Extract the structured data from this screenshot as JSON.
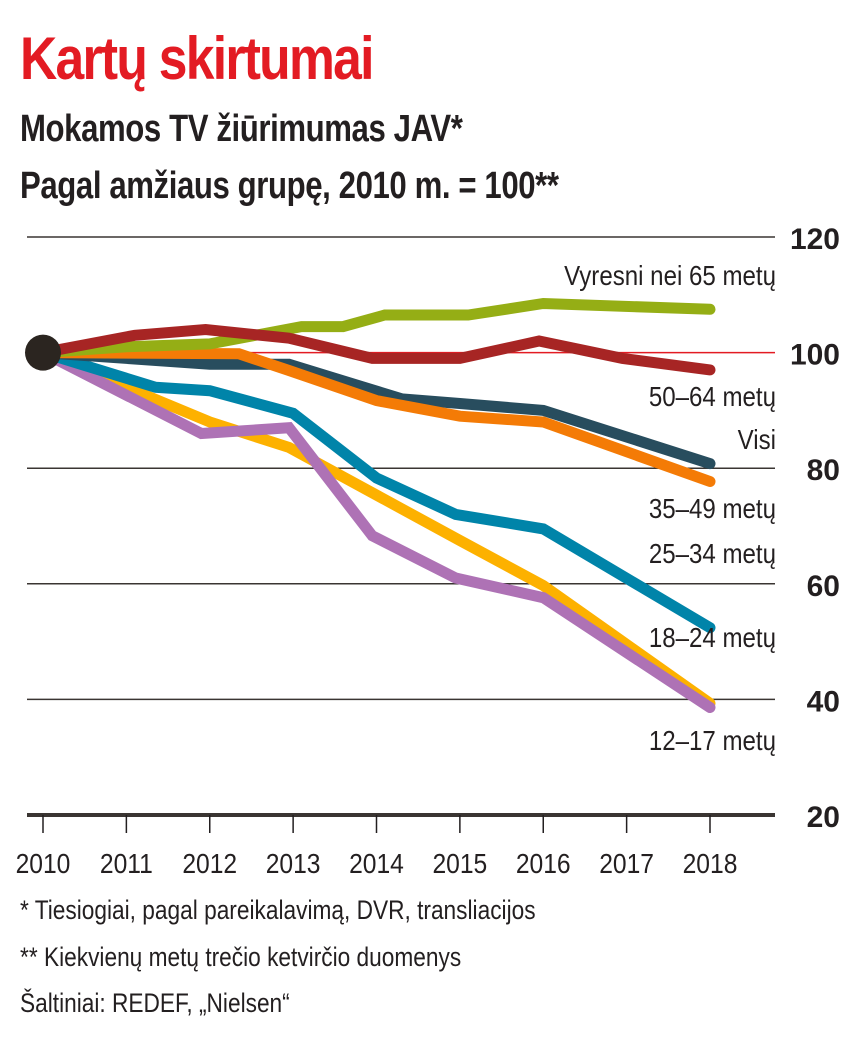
{
  "header": {
    "title": "Kartų skirtumai",
    "subtitle_line1": "Mokamos TV žiūrimumas JAV*",
    "subtitle_line2": "Pagal amžiaus grupę, 2010 m. = 100**"
  },
  "footer": {
    "note1": "* Tiesiogiai, pagal pareikalavimą, DVR, transliacijos",
    "note2": "** Kiekvienų metų trečio ketvirčio duomenys",
    "source": "Šaltiniai: REDEF, „Nielsen“"
  },
  "chart_data": {
    "type": "line",
    "title": "Kartų skirtumai",
    "subtitle": "Mokamos TV žiūrimumas JAV* — Pagal amžiaus grupę, 2010 m. = 100**",
    "xlabel": "",
    "ylabel": "",
    "xlim": [
      2010,
      2018
    ],
    "ylim": [
      20,
      120
    ],
    "x_ticks": [
      "2010",
      "2011",
      "2012",
      "2013",
      "2014",
      "2015",
      "2016",
      "2017",
      "2018"
    ],
    "y_ticks": [
      "120",
      "100",
      "80",
      "60",
      "40",
      "20"
    ],
    "y_tick_values": [
      120,
      100,
      80,
      60,
      40,
      20
    ],
    "y_axis_side": "right",
    "grid": true,
    "baseline": 100,
    "baseline_color": "#e31b23",
    "start_marker": {
      "x": 2010,
      "y": 100,
      "color": "#2b2520"
    },
    "series": [
      {
        "name": "Vyresni nei 65 metų",
        "color": "#95ae15",
        "points": [
          [
            2010,
            100
          ],
          [
            2011,
            101
          ],
          [
            2012,
            101.5
          ],
          [
            2013.1,
            104.5
          ],
          [
            2013.6,
            104.5
          ],
          [
            2014.1,
            106.5
          ],
          [
            2015.1,
            106.5
          ],
          [
            2016,
            108.5
          ],
          [
            2018,
            107.5
          ]
        ]
      },
      {
        "name": "50–64 metų",
        "color": "#a72524",
        "points": [
          [
            2010,
            100
          ],
          [
            2011.1,
            103
          ],
          [
            2011.95,
            104
          ],
          [
            2012.95,
            102.5
          ],
          [
            2013.95,
            99
          ],
          [
            2015,
            99
          ],
          [
            2015.95,
            102
          ],
          [
            2016.95,
            99
          ],
          [
            2018,
            97
          ]
        ]
      },
      {
        "name": "Visi",
        "color": "#284d5e",
        "points": [
          [
            2010,
            100
          ],
          [
            2012,
            98
          ],
          [
            2012.95,
            98
          ],
          [
            2014.3,
            92
          ],
          [
            2015,
            91.2
          ],
          [
            2016,
            90
          ],
          [
            2018,
            80.8
          ]
        ]
      },
      {
        "name": "35–49 metų",
        "color": "#f47b06",
        "points": [
          [
            2010,
            100
          ],
          [
            2012.35,
            99.8
          ],
          [
            2012.95,
            96.9
          ],
          [
            2014,
            91.7
          ],
          [
            2015,
            89
          ],
          [
            2016,
            88
          ],
          [
            2018,
            77.7
          ]
        ]
      },
      {
        "name": "25–34 metų",
        "color": "#fdb100",
        "points": [
          [
            2010,
            100
          ],
          [
            2012,
            88
          ],
          [
            2012.95,
            83.6
          ],
          [
            2015,
            67.5
          ],
          [
            2016,
            59.7
          ],
          [
            2018,
            39.3
          ]
        ]
      },
      {
        "name": "18–24 metų",
        "color": "#0084a9",
        "points": [
          [
            2010,
            100
          ],
          [
            2011.35,
            94
          ],
          [
            2012,
            93.4
          ],
          [
            2013,
            89.5
          ],
          [
            2014,
            78.3
          ],
          [
            2014.95,
            72
          ],
          [
            2016,
            69.5
          ],
          [
            2018,
            52.4
          ]
        ]
      },
      {
        "name": "12–17 metų",
        "color": "#ae72b5",
        "points": [
          [
            2010,
            100
          ],
          [
            2011.9,
            86
          ],
          [
            2012.95,
            87
          ],
          [
            2013.95,
            68.3
          ],
          [
            2014.95,
            61
          ],
          [
            2016,
            57.6
          ],
          [
            2018,
            38.6
          ]
        ]
      }
    ],
    "labels": [
      {
        "text": "Vyresni nei 65 metų",
        "series": "Vyresni nei 65 metų"
      },
      {
        "text": "50–64 metų",
        "series": "50–64 metų"
      },
      {
        "text": "Visi",
        "series": "Visi"
      },
      {
        "text": "35–49 metų",
        "series": "35–49 metų"
      },
      {
        "text": "25–34 metų",
        "series": "25–34 metų"
      },
      {
        "text": "18–24 metų",
        "series": "18–24 metų"
      },
      {
        "text": "12–17 metų",
        "series": "12–17 metų"
      }
    ],
    "legend": "inline-right"
  }
}
